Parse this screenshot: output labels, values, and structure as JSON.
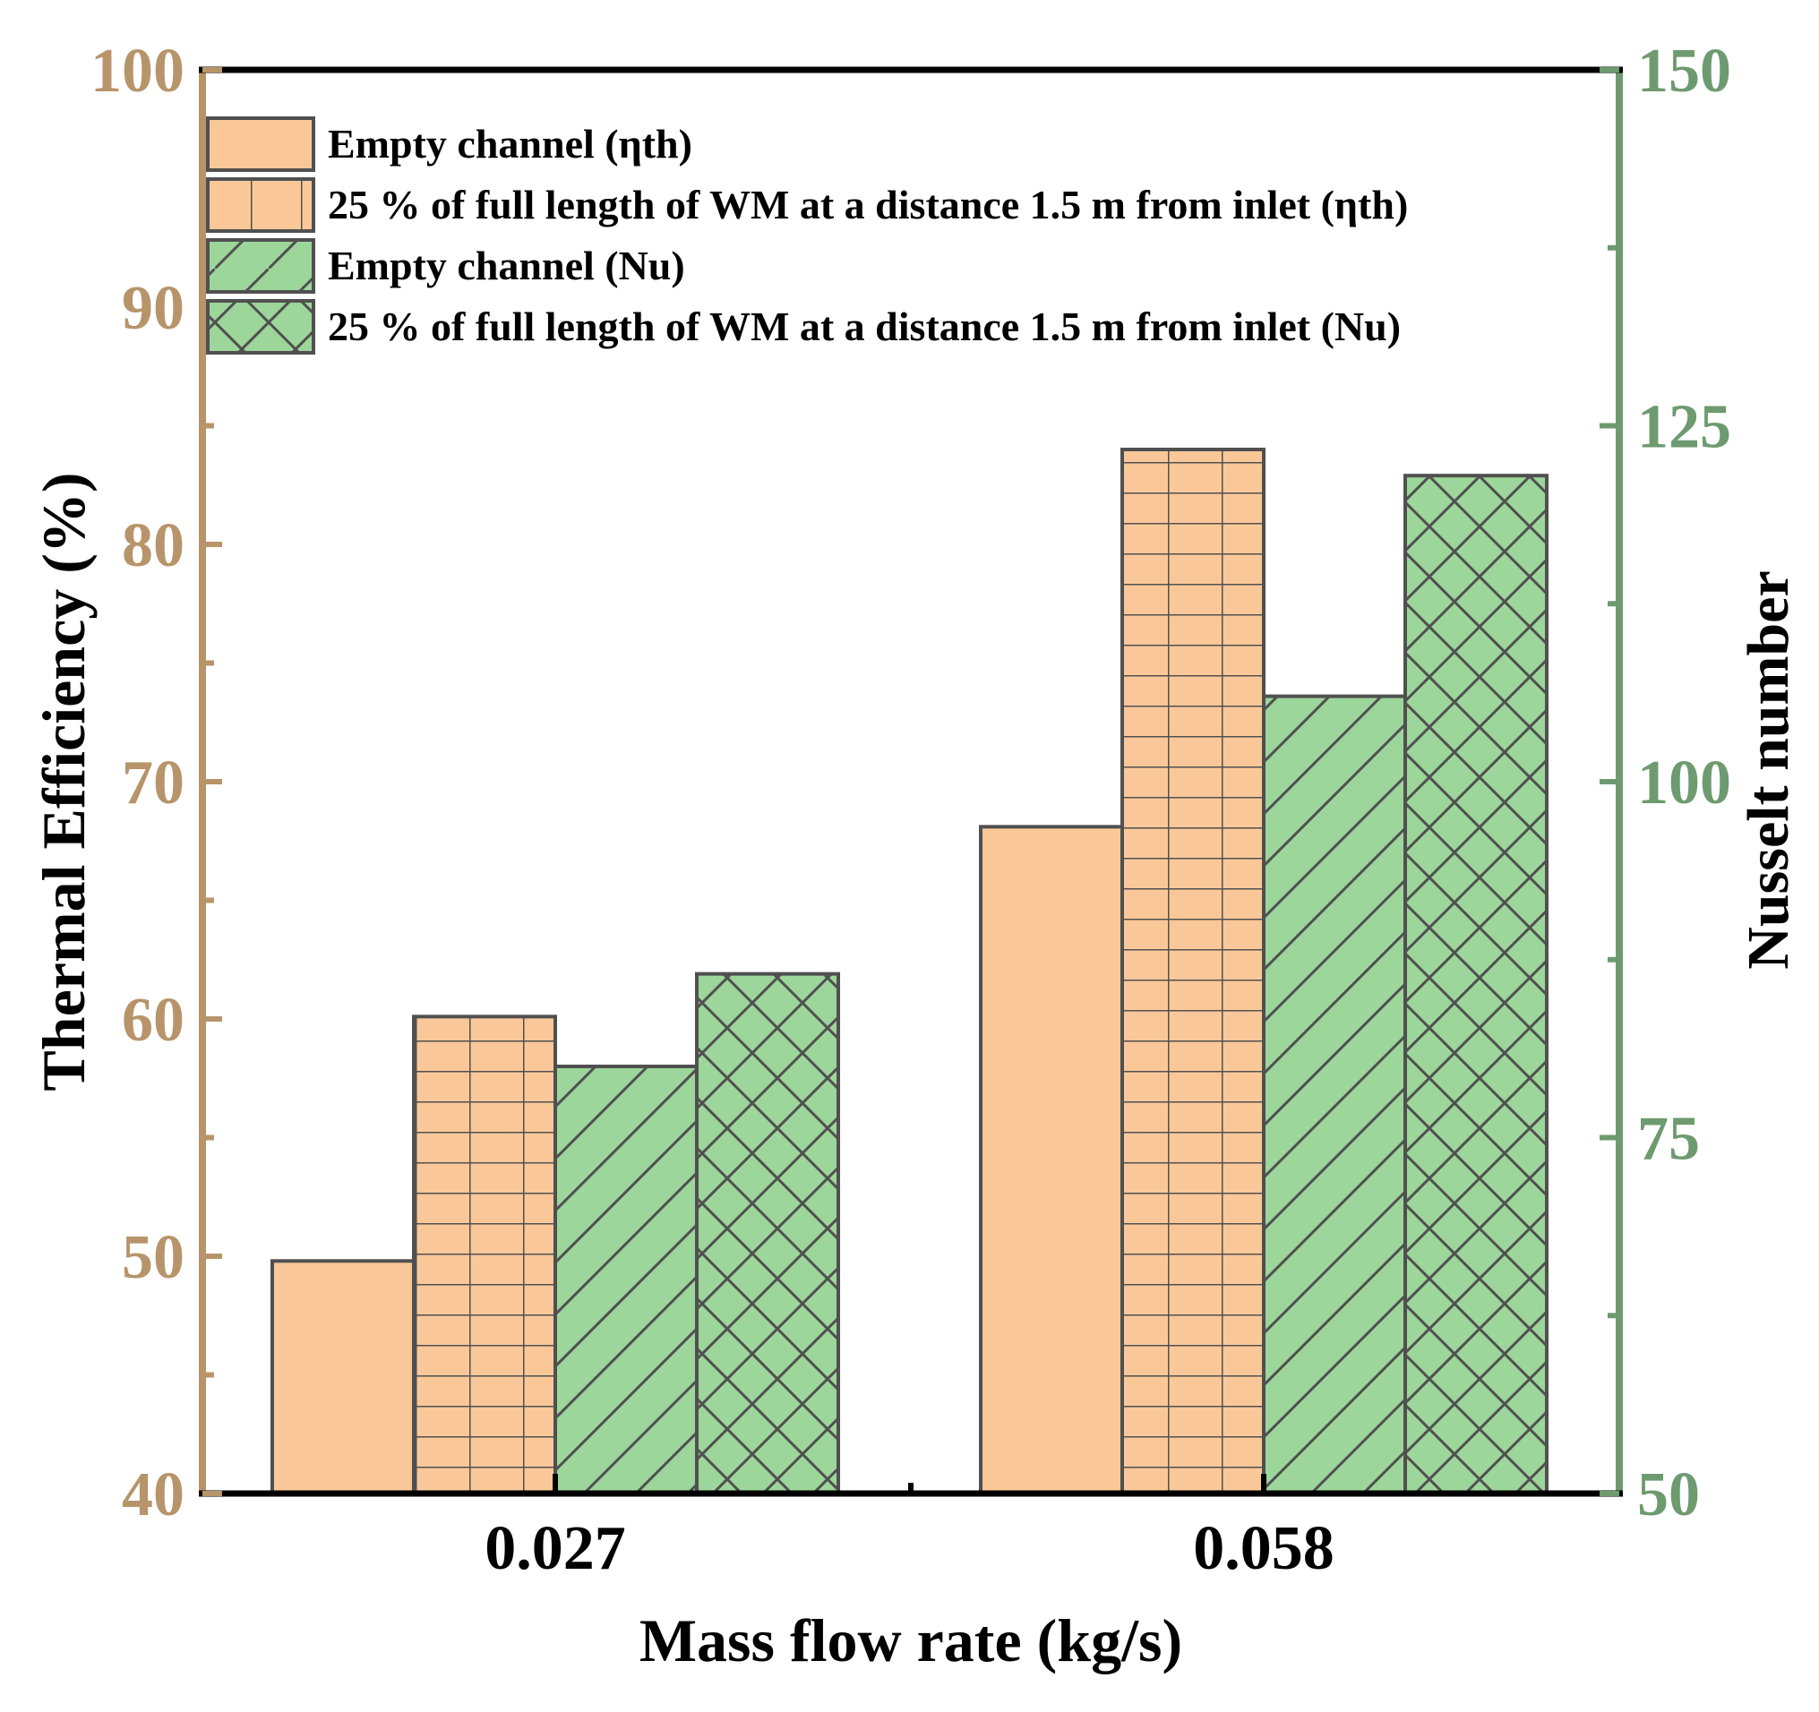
{
  "chart_data": {
    "type": "bar",
    "xlabel": "Mass flow rate (kg/s)",
    "ylabel_left": "Thermal Efficiency (%)",
    "ylabel_right": "Nusselt number",
    "categories": [
      "0.027",
      "0.058"
    ],
    "ylim_left": [
      40,
      100
    ],
    "ylim_right": [
      50,
      150
    ],
    "yticks_left": [
      "40",
      "50",
      "60",
      "70",
      "80",
      "90",
      "100"
    ],
    "yticks_right": [
      "50",
      "75",
      "100",
      "125",
      "150"
    ],
    "series": [
      {
        "name": "Empty channel (ηth)",
        "axis": "left",
        "values": [
          49.8,
          68.1
        ],
        "fill": "#FAC898",
        "pattern": "none"
      },
      {
        "name": "25 % of full length of WM at a distance 1.5 m from inlet (ηth)",
        "axis": "left",
        "values": [
          60.1,
          84.0
        ],
        "fill": "#FAC898",
        "pattern": "grid"
      },
      {
        "name": "Empty channel (Nu)",
        "axis": "right",
        "values": [
          80.0,
          106.0
        ],
        "fill": "#9DD69A",
        "pattern": "diagonal"
      },
      {
        "name": "25 % of full length of WM at a distance 1.5 m from inlet (Nu)",
        "axis": "right",
        "values": [
          86.5,
          121.5
        ],
        "fill": "#9DD69A",
        "pattern": "crosshatch"
      }
    ],
    "colors": {
      "left_axis": "#B8946A",
      "right_axis": "#6E9A70",
      "bar_edge": "#505050",
      "frame": "#000000"
    },
    "legend_position": "top-left",
    "grid": false
  }
}
